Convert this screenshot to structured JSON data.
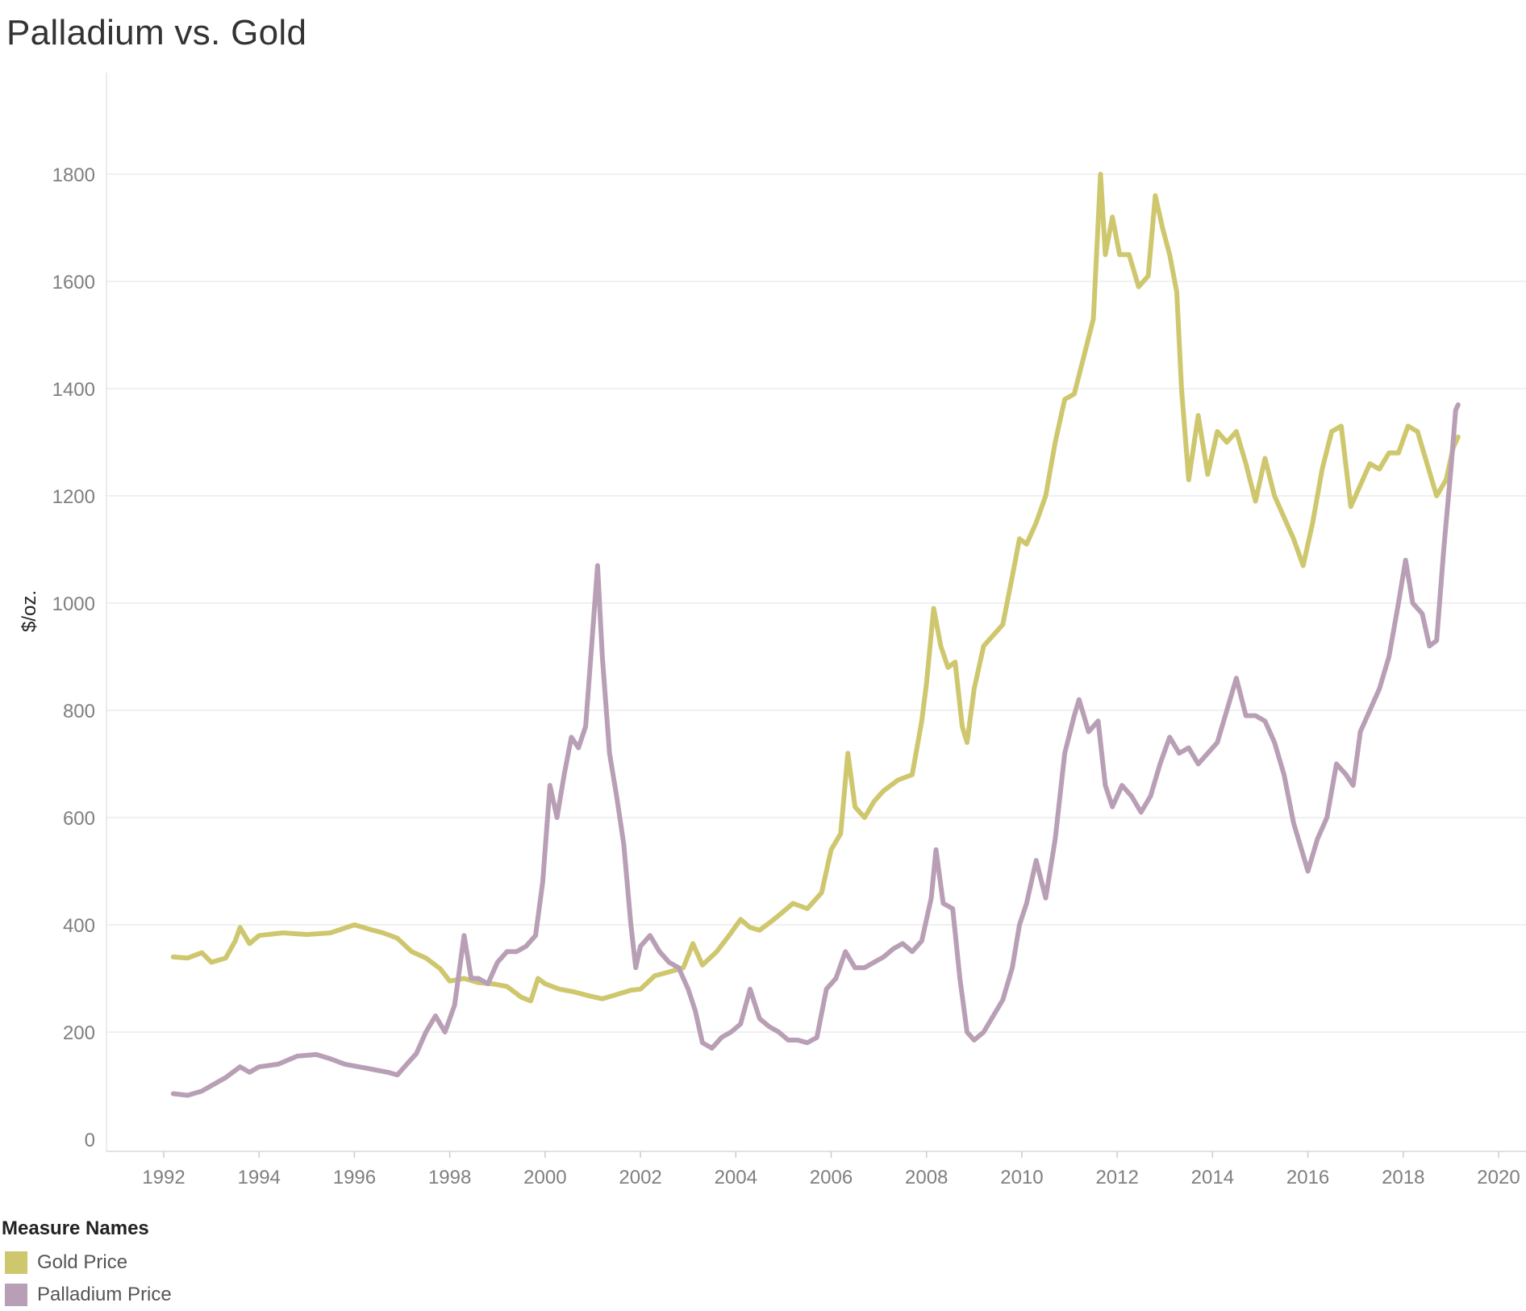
{
  "title": "Palladium vs. Gold",
  "legend": {
    "title": "Measure Names",
    "items": [
      {
        "label": "Gold Price",
        "color": "#cfc76e"
      },
      {
        "label": "Palladium Price",
        "color": "#b99fb5"
      }
    ]
  },
  "chart_data": {
    "type": "line",
    "title": "Palladium vs. Gold",
    "xlabel": "",
    "ylabel": "$/oz.",
    "xlim": [
      1991,
      2020.5
    ],
    "ylim": [
      0,
      1930
    ],
    "x_ticks": [
      "1992",
      "1994",
      "1996",
      "1998",
      "2000",
      "2002",
      "2004",
      "2006",
      "2008",
      "2010",
      "2012",
      "2014",
      "2016",
      "2018",
      "2020"
    ],
    "y_ticks": [
      "0",
      "200",
      "400",
      "600",
      "800",
      "1000",
      "1200",
      "1400",
      "1600",
      "1800"
    ],
    "grid": "horizontal",
    "legend_position": "bottom-left",
    "series": [
      {
        "name": "Gold Price",
        "color": "#cfc76e",
        "points": [
          [
            1992.2,
            340
          ],
          [
            1992.5,
            338
          ],
          [
            1992.8,
            348
          ],
          [
            1993.0,
            330
          ],
          [
            1993.3,
            338
          ],
          [
            1993.5,
            370
          ],
          [
            1993.6,
            395
          ],
          [
            1993.8,
            365
          ],
          [
            1994.0,
            380
          ],
          [
            1994.5,
            385
          ],
          [
            1995.0,
            382
          ],
          [
            1995.5,
            385
          ],
          [
            1996.0,
            400
          ],
          [
            1996.3,
            392
          ],
          [
            1996.6,
            385
          ],
          [
            1996.9,
            375
          ],
          [
            1997.2,
            350
          ],
          [
            1997.5,
            338
          ],
          [
            1997.8,
            318
          ],
          [
            1998.0,
            295
          ],
          [
            1998.3,
            300
          ],
          [
            1998.6,
            292
          ],
          [
            1998.9,
            290
          ],
          [
            1999.2,
            285
          ],
          [
            1999.5,
            265
          ],
          [
            1999.7,
            258
          ],
          [
            1999.85,
            300
          ],
          [
            2000.0,
            290
          ],
          [
            2000.3,
            280
          ],
          [
            2000.6,
            275
          ],
          [
            2000.9,
            268
          ],
          [
            2001.2,
            262
          ],
          [
            2001.5,
            270
          ],
          [
            2001.8,
            278
          ],
          [
            2002.0,
            280
          ],
          [
            2002.3,
            305
          ],
          [
            2002.6,
            312
          ],
          [
            2002.9,
            320
          ],
          [
            2003.1,
            365
          ],
          [
            2003.3,
            325
          ],
          [
            2003.6,
            350
          ],
          [
            2003.9,
            385
          ],
          [
            2004.1,
            410
          ],
          [
            2004.3,
            395
          ],
          [
            2004.5,
            390
          ],
          [
            2004.8,
            410
          ],
          [
            2005.0,
            425
          ],
          [
            2005.2,
            440
          ],
          [
            2005.5,
            430
          ],
          [
            2005.8,
            460
          ],
          [
            2006.0,
            540
          ],
          [
            2006.2,
            570
          ],
          [
            2006.35,
            720
          ],
          [
            2006.5,
            620
          ],
          [
            2006.7,
            600
          ],
          [
            2006.9,
            630
          ],
          [
            2007.1,
            650
          ],
          [
            2007.4,
            670
          ],
          [
            2007.7,
            680
          ],
          [
            2007.9,
            780
          ],
          [
            2008.0,
            850
          ],
          [
            2008.15,
            990
          ],
          [
            2008.3,
            920
          ],
          [
            2008.45,
            880
          ],
          [
            2008.6,
            890
          ],
          [
            2008.75,
            770
          ],
          [
            2008.85,
            740
          ],
          [
            2009.0,
            840
          ],
          [
            2009.2,
            920
          ],
          [
            2009.4,
            940
          ],
          [
            2009.6,
            960
          ],
          [
            2009.8,
            1050
          ],
          [
            2009.95,
            1120
          ],
          [
            2010.1,
            1110
          ],
          [
            2010.3,
            1150
          ],
          [
            2010.5,
            1200
          ],
          [
            2010.7,
            1300
          ],
          [
            2010.9,
            1380
          ],
          [
            2011.1,
            1390
          ],
          [
            2011.3,
            1460
          ],
          [
            2011.5,
            1530
          ],
          [
            2011.65,
            1800
          ],
          [
            2011.75,
            1650
          ],
          [
            2011.9,
            1720
          ],
          [
            2012.05,
            1650
          ],
          [
            2012.25,
            1650
          ],
          [
            2012.45,
            1590
          ],
          [
            2012.65,
            1610
          ],
          [
            2012.8,
            1760
          ],
          [
            2012.95,
            1700
          ],
          [
            2013.1,
            1650
          ],
          [
            2013.25,
            1580
          ],
          [
            2013.35,
            1400
          ],
          [
            2013.5,
            1230
          ],
          [
            2013.7,
            1350
          ],
          [
            2013.9,
            1240
          ],
          [
            2014.1,
            1320
          ],
          [
            2014.3,
            1300
          ],
          [
            2014.5,
            1320
          ],
          [
            2014.7,
            1260
          ],
          [
            2014.9,
            1190
          ],
          [
            2015.1,
            1270
          ],
          [
            2015.3,
            1200
          ],
          [
            2015.5,
            1160
          ],
          [
            2015.7,
            1120
          ],
          [
            2015.9,
            1070
          ],
          [
            2016.1,
            1150
          ],
          [
            2016.3,
            1250
          ],
          [
            2016.5,
            1320
          ],
          [
            2016.7,
            1330
          ],
          [
            2016.9,
            1180
          ],
          [
            2017.1,
            1220
          ],
          [
            2017.3,
            1260
          ],
          [
            2017.5,
            1250
          ],
          [
            2017.7,
            1280
          ],
          [
            2017.9,
            1280
          ],
          [
            2018.1,
            1330
          ],
          [
            2018.3,
            1320
          ],
          [
            2018.5,
            1260
          ],
          [
            2018.7,
            1200
          ],
          [
            2018.9,
            1230
          ],
          [
            2019.05,
            1290
          ],
          [
            2019.15,
            1310
          ]
        ]
      },
      {
        "name": "Palladium Price",
        "color": "#b99fb5",
        "points": [
          [
            1992.2,
            85
          ],
          [
            1992.5,
            82
          ],
          [
            1992.8,
            90
          ],
          [
            1993.0,
            100
          ],
          [
            1993.3,
            115
          ],
          [
            1993.6,
            135
          ],
          [
            1993.8,
            125
          ],
          [
            1994.0,
            135
          ],
          [
            1994.4,
            140
          ],
          [
            1994.8,
            155
          ],
          [
            1995.2,
            158
          ],
          [
            1995.5,
            150
          ],
          [
            1995.8,
            140
          ],
          [
            1996.1,
            135
          ],
          [
            1996.4,
            130
          ],
          [
            1996.7,
            125
          ],
          [
            1996.9,
            120
          ],
          [
            1997.1,
            140
          ],
          [
            1997.3,
            160
          ],
          [
            1997.5,
            200
          ],
          [
            1997.7,
            230
          ],
          [
            1997.9,
            200
          ],
          [
            1998.1,
            250
          ],
          [
            1998.3,
            380
          ],
          [
            1998.45,
            300
          ],
          [
            1998.6,
            300
          ],
          [
            1998.8,
            290
          ],
          [
            1999.0,
            330
          ],
          [
            1999.2,
            350
          ],
          [
            1999.4,
            350
          ],
          [
            1999.6,
            360
          ],
          [
            1999.8,
            380
          ],
          [
            1999.95,
            480
          ],
          [
            2000.1,
            660
          ],
          [
            2000.25,
            600
          ],
          [
            2000.4,
            680
          ],
          [
            2000.55,
            750
          ],
          [
            2000.7,
            730
          ],
          [
            2000.85,
            770
          ],
          [
            2001.0,
            950
          ],
          [
            2001.1,
            1070
          ],
          [
            2001.2,
            900
          ],
          [
            2001.35,
            720
          ],
          [
            2001.5,
            640
          ],
          [
            2001.65,
            550
          ],
          [
            2001.8,
            400
          ],
          [
            2001.9,
            320
          ],
          [
            2002.0,
            360
          ],
          [
            2002.2,
            380
          ],
          [
            2002.4,
            350
          ],
          [
            2002.6,
            330
          ],
          [
            2002.8,
            320
          ],
          [
            2003.0,
            280
          ],
          [
            2003.15,
            240
          ],
          [
            2003.3,
            180
          ],
          [
            2003.5,
            170
          ],
          [
            2003.7,
            190
          ],
          [
            2003.9,
            200
          ],
          [
            2004.1,
            215
          ],
          [
            2004.3,
            280
          ],
          [
            2004.5,
            225
          ],
          [
            2004.7,
            210
          ],
          [
            2004.9,
            200
          ],
          [
            2005.1,
            185
          ],
          [
            2005.3,
            185
          ],
          [
            2005.5,
            180
          ],
          [
            2005.7,
            190
          ],
          [
            2005.9,
            280
          ],
          [
            2006.1,
            300
          ],
          [
            2006.3,
            350
          ],
          [
            2006.5,
            320
          ],
          [
            2006.7,
            320
          ],
          [
            2006.9,
            330
          ],
          [
            2007.1,
            340
          ],
          [
            2007.3,
            355
          ],
          [
            2007.5,
            365
          ],
          [
            2007.7,
            350
          ],
          [
            2007.9,
            370
          ],
          [
            2008.1,
            450
          ],
          [
            2008.2,
            540
          ],
          [
            2008.35,
            440
          ],
          [
            2008.55,
            430
          ],
          [
            2008.7,
            300
          ],
          [
            2008.85,
            200
          ],
          [
            2009.0,
            185
          ],
          [
            2009.2,
            200
          ],
          [
            2009.4,
            230
          ],
          [
            2009.6,
            260
          ],
          [
            2009.8,
            320
          ],
          [
            2009.95,
            400
          ],
          [
            2010.1,
            440
          ],
          [
            2010.3,
            520
          ],
          [
            2010.5,
            450
          ],
          [
            2010.7,
            560
          ],
          [
            2010.9,
            720
          ],
          [
            2011.1,
            790
          ],
          [
            2011.2,
            820
          ],
          [
            2011.4,
            760
          ],
          [
            2011.6,
            780
          ],
          [
            2011.75,
            660
          ],
          [
            2011.9,
            620
          ],
          [
            2012.1,
            660
          ],
          [
            2012.3,
            640
          ],
          [
            2012.5,
            610
          ],
          [
            2012.7,
            640
          ],
          [
            2012.9,
            700
          ],
          [
            2013.1,
            750
          ],
          [
            2013.3,
            720
          ],
          [
            2013.5,
            730
          ],
          [
            2013.7,
            700
          ],
          [
            2013.9,
            720
          ],
          [
            2014.1,
            740
          ],
          [
            2014.3,
            800
          ],
          [
            2014.5,
            860
          ],
          [
            2014.7,
            790
          ],
          [
            2014.9,
            790
          ],
          [
            2015.1,
            780
          ],
          [
            2015.3,
            740
          ],
          [
            2015.5,
            680
          ],
          [
            2015.7,
            590
          ],
          [
            2015.9,
            530
          ],
          [
            2016.0,
            500
          ],
          [
            2016.2,
            560
          ],
          [
            2016.4,
            600
          ],
          [
            2016.6,
            700
          ],
          [
            2016.8,
            680
          ],
          [
            2016.95,
            660
          ],
          [
            2017.1,
            760
          ],
          [
            2017.3,
            800
          ],
          [
            2017.5,
            840
          ],
          [
            2017.7,
            900
          ],
          [
            2017.9,
            1000
          ],
          [
            2018.05,
            1080
          ],
          [
            2018.2,
            1000
          ],
          [
            2018.4,
            980
          ],
          [
            2018.55,
            920
          ],
          [
            2018.7,
            930
          ],
          [
            2018.85,
            1100
          ],
          [
            2019.0,
            1250
          ],
          [
            2019.1,
            1360
          ],
          [
            2019.15,
            1370
          ]
        ]
      }
    ]
  }
}
